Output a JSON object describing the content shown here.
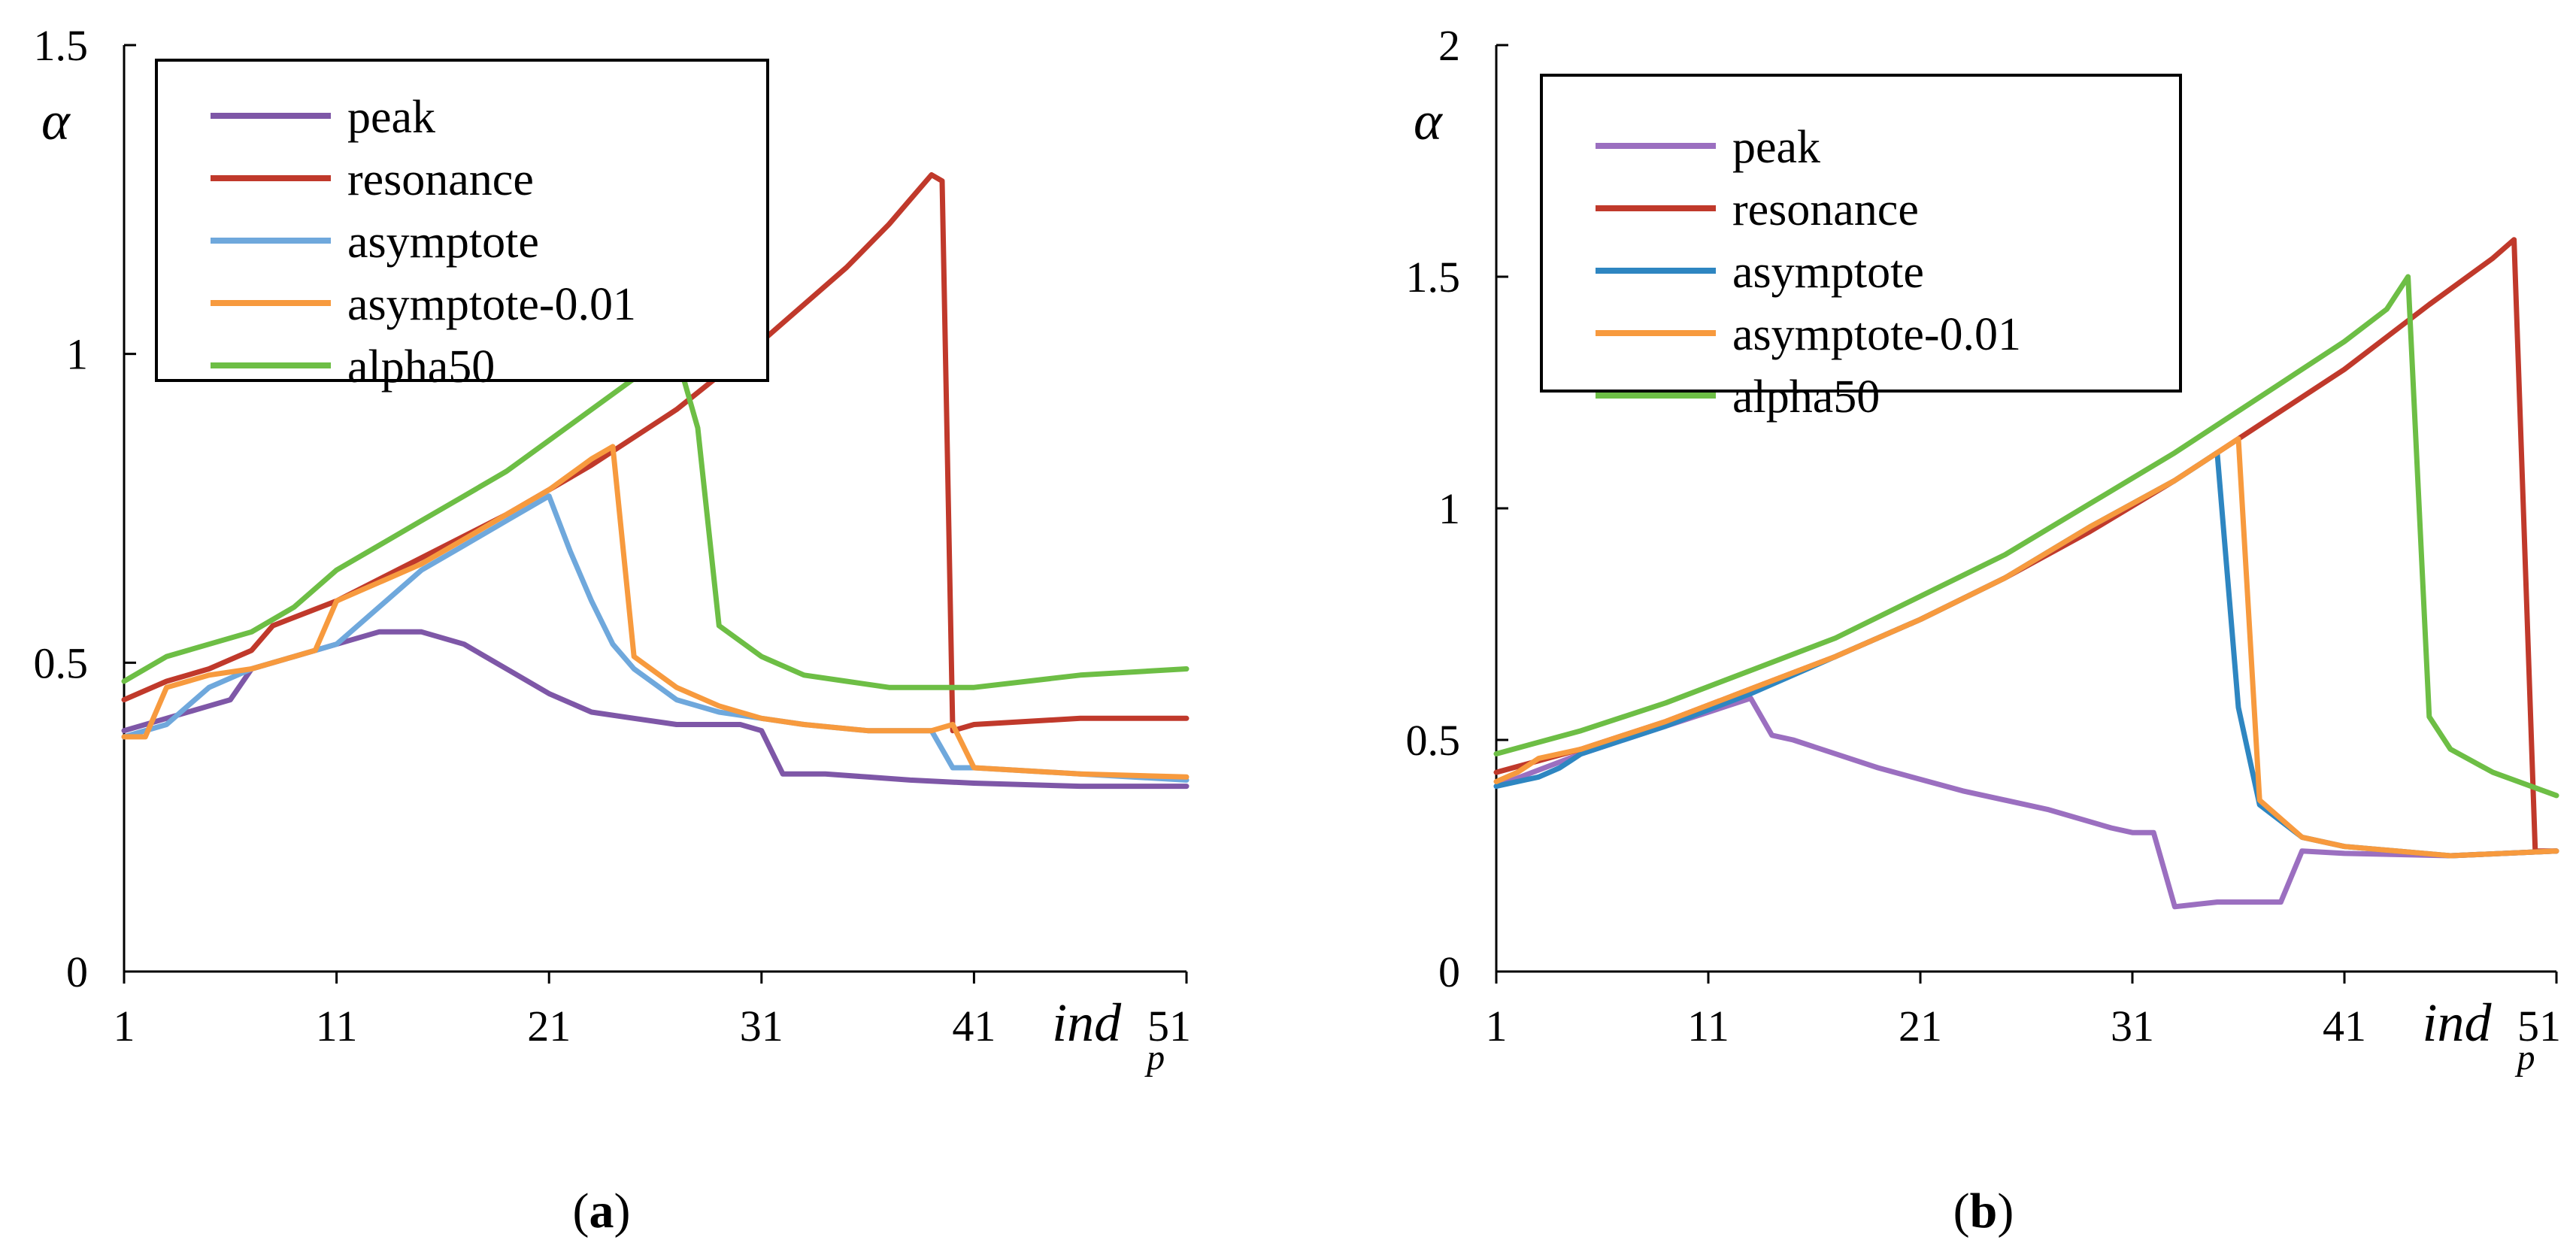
{
  "figure": {
    "captions": [
      {
        "open": "(",
        "letter": "a",
        "close": ")"
      },
      {
        "open": "(",
        "letter": "b",
        "close": ")"
      }
    ]
  },
  "chart_data": [
    {
      "type": "line",
      "ylabel": "α",
      "xlabel": "ind",
      "xlabel_sub": "p",
      "xlim": [
        1,
        51
      ],
      "ylim": [
        0,
        1.5
      ],
      "xticks": [
        "1",
        "11",
        "21",
        "31",
        "41",
        "51"
      ],
      "yticks": [
        "0",
        "0.5",
        "1",
        "1.5"
      ],
      "legend_position": "top-left",
      "grid": false,
      "series": [
        {
          "name": "peak",
          "color": "#7E57A7",
          "points": [
            [
              1,
              0.39
            ],
            [
              3,
              0.41
            ],
            [
              5,
              0.43
            ],
            [
              6,
              0.44
            ],
            [
              7,
              0.49
            ],
            [
              9,
              0.51
            ],
            [
              11,
              0.53
            ],
            [
              13,
              0.55
            ],
            [
              15,
              0.55
            ],
            [
              17,
              0.53
            ],
            [
              19,
              0.49
            ],
            [
              21,
              0.45
            ],
            [
              23,
              0.42
            ],
            [
              25,
              0.41
            ],
            [
              27,
              0.4
            ],
            [
              29,
              0.4
            ],
            [
              30,
              0.4
            ],
            [
              31,
              0.39
            ],
            [
              32,
              0.32
            ],
            [
              34,
              0.32
            ],
            [
              36,
              0.315
            ],
            [
              38,
              0.31
            ],
            [
              41,
              0.305
            ],
            [
              46,
              0.3
            ],
            [
              51,
              0.3
            ]
          ]
        },
        {
          "name": "resonance",
          "color": "#C0392B",
          "points": [
            [
              1,
              0.44
            ],
            [
              3,
              0.47
            ],
            [
              5,
              0.49
            ],
            [
              7,
              0.52
            ],
            [
              8,
              0.56
            ],
            [
              11,
              0.6
            ],
            [
              15,
              0.67
            ],
            [
              19,
              0.74
            ],
            [
              23,
              0.82
            ],
            [
              27,
              0.91
            ],
            [
              31,
              1.02
            ],
            [
              35,
              1.14
            ],
            [
              37,
              1.21
            ],
            [
              38,
              1.25
            ],
            [
              39,
              1.29
            ],
            [
              39.5,
              1.28
            ],
            [
              40,
              0.39
            ],
            [
              41,
              0.4
            ],
            [
              46,
              0.41
            ],
            [
              51,
              0.41
            ]
          ]
        },
        {
          "name": "asymptote",
          "color": "#6FA8DC",
          "points": [
            [
              1,
              0.38
            ],
            [
              3,
              0.4
            ],
            [
              5,
              0.46
            ],
            [
              7,
              0.49
            ],
            [
              9,
              0.51
            ],
            [
              11,
              0.53
            ],
            [
              13,
              0.59
            ],
            [
              15,
              0.65
            ],
            [
              17,
              0.69
            ],
            [
              19,
              0.73
            ],
            [
              21,
              0.77
            ],
            [
              22,
              0.68
            ],
            [
              23,
              0.6
            ],
            [
              24,
              0.53
            ],
            [
              25,
              0.49
            ],
            [
              27,
              0.44
            ],
            [
              29,
              0.42
            ],
            [
              31,
              0.41
            ],
            [
              33,
              0.4
            ],
            [
              36,
              0.39
            ],
            [
              39,
              0.39
            ],
            [
              40,
              0.33
            ],
            [
              41,
              0.33
            ],
            [
              46,
              0.32
            ],
            [
              51,
              0.31
            ]
          ]
        },
        {
          "name": "asymptote-0.01",
          "color": "#F79A3E",
          "points": [
            [
              1,
              0.38
            ],
            [
              2,
              0.38
            ],
            [
              3,
              0.46
            ],
            [
              5,
              0.48
            ],
            [
              7,
              0.49
            ],
            [
              9,
              0.51
            ],
            [
              10,
              0.52
            ],
            [
              11,
              0.6
            ],
            [
              13,
              0.63
            ],
            [
              15,
              0.66
            ],
            [
              17,
              0.7
            ],
            [
              19,
              0.74
            ],
            [
              21,
              0.78
            ],
            [
              23,
              0.83
            ],
            [
              24,
              0.85
            ],
            [
              25,
              0.51
            ],
            [
              27,
              0.46
            ],
            [
              29,
              0.43
            ],
            [
              31,
              0.41
            ],
            [
              33,
              0.4
            ],
            [
              36,
              0.39
            ],
            [
              39,
              0.39
            ],
            [
              40,
              0.4
            ],
            [
              41,
              0.33
            ],
            [
              46,
              0.32
            ],
            [
              51,
              0.315
            ]
          ]
        },
        {
          "name": "alpha50",
          "color": "#6DBE45",
          "points": [
            [
              1,
              0.47
            ],
            [
              3,
              0.51
            ],
            [
              5,
              0.53
            ],
            [
              7,
              0.55
            ],
            [
              9,
              0.59
            ],
            [
              11,
              0.65
            ],
            [
              13,
              0.69
            ],
            [
              15,
              0.73
            ],
            [
              17,
              0.77
            ],
            [
              19,
              0.81
            ],
            [
              21,
              0.86
            ],
            [
              23,
              0.91
            ],
            [
              25,
              0.96
            ],
            [
              27,
              1.0
            ],
            [
              28,
              0.88
            ],
            [
              29,
              0.56
            ],
            [
              31,
              0.51
            ],
            [
              33,
              0.48
            ],
            [
              35,
              0.47
            ],
            [
              37,
              0.46
            ],
            [
              41,
              0.46
            ],
            [
              46,
              0.48
            ],
            [
              51,
              0.49
            ]
          ]
        }
      ]
    },
    {
      "type": "line",
      "ylabel": "α",
      "xlabel": "ind",
      "xlabel_sub": "p",
      "xlim": [
        1,
        51
      ],
      "ylim": [
        0,
        2
      ],
      "xticks": [
        "1",
        "11",
        "21",
        "31",
        "41",
        "51"
      ],
      "yticks": [
        "0",
        "0.5",
        "1",
        "1.5",
        "2"
      ],
      "legend_position": "top-left",
      "grid": false,
      "series": [
        {
          "name": "peak",
          "color": "#9B6FC0",
          "points": [
            [
              1,
              0.4
            ],
            [
              5,
              0.47
            ],
            [
              9,
              0.53
            ],
            [
              13,
              0.59
            ],
            [
              14,
              0.51
            ],
            [
              15,
              0.5
            ],
            [
              19,
              0.44
            ],
            [
              23,
              0.39
            ],
            [
              27,
              0.35
            ],
            [
              30,
              0.31
            ],
            [
              31,
              0.3
            ],
            [
              32,
              0.3
            ],
            [
              33,
              0.14
            ],
            [
              35,
              0.15
            ],
            [
              37,
              0.15
            ],
            [
              38,
              0.15
            ],
            [
              39,
              0.26
            ],
            [
              41,
              0.255
            ],
            [
              46,
              0.25
            ],
            [
              51,
              0.26
            ]
          ]
        },
        {
          "name": "resonance",
          "color": "#C0392B",
          "points": [
            [
              1,
              0.43
            ],
            [
              5,
              0.48
            ],
            [
              9,
              0.54
            ],
            [
              13,
              0.61
            ],
            [
              17,
              0.68
            ],
            [
              21,
              0.76
            ],
            [
              25,
              0.85
            ],
            [
              29,
              0.95
            ],
            [
              33,
              1.06
            ],
            [
              37,
              1.18
            ],
            [
              41,
              1.3
            ],
            [
              45,
              1.44
            ],
            [
              48,
              1.54
            ],
            [
              49,
              1.58
            ],
            [
              50,
              0.26
            ],
            [
              51,
              0.26
            ]
          ]
        },
        {
          "name": "asymptote",
          "color": "#2E86C1",
          "points": [
            [
              1,
              0.4
            ],
            [
              3,
              0.42
            ],
            [
              4,
              0.44
            ],
            [
              5,
              0.47
            ],
            [
              9,
              0.53
            ],
            [
              13,
              0.6
            ],
            [
              17,
              0.68
            ],
            [
              21,
              0.76
            ],
            [
              25,
              0.85
            ],
            [
              29,
              0.96
            ],
            [
              33,
              1.06
            ],
            [
              35,
              1.12
            ],
            [
              36,
              0.57
            ],
            [
              37,
              0.36
            ],
            [
              39,
              0.29
            ],
            [
              41,
              0.27
            ],
            [
              46,
              0.25
            ],
            [
              51,
              0.26
            ]
          ]
        },
        {
          "name": "asymptote-0.01",
          "color": "#F79A3E",
          "points": [
            [
              1,
              0.41
            ],
            [
              2,
              0.43
            ],
            [
              3,
              0.46
            ],
            [
              5,
              0.48
            ],
            [
              9,
              0.54
            ],
            [
              13,
              0.61
            ],
            [
              17,
              0.68
            ],
            [
              21,
              0.76
            ],
            [
              25,
              0.85
            ],
            [
              29,
              0.96
            ],
            [
              33,
              1.06
            ],
            [
              36,
              1.15
            ],
            [
              37,
              0.37
            ],
            [
              39,
              0.29
            ],
            [
              41,
              0.27
            ],
            [
              46,
              0.25
            ],
            [
              51,
              0.26
            ]
          ]
        },
        {
          "name": "alpha50",
          "color": "#6DBE45",
          "points": [
            [
              1,
              0.47
            ],
            [
              5,
              0.52
            ],
            [
              9,
              0.58
            ],
            [
              13,
              0.65
            ],
            [
              17,
              0.72
            ],
            [
              21,
              0.81
            ],
            [
              25,
              0.9
            ],
            [
              29,
              1.01
            ],
            [
              33,
              1.12
            ],
            [
              37,
              1.24
            ],
            [
              41,
              1.36
            ],
            [
              43,
              1.43
            ],
            [
              44,
              1.5
            ],
            [
              45,
              0.55
            ],
            [
              46,
              0.48
            ],
            [
              48,
              0.43
            ],
            [
              51,
              0.38
            ]
          ]
        }
      ]
    }
  ]
}
